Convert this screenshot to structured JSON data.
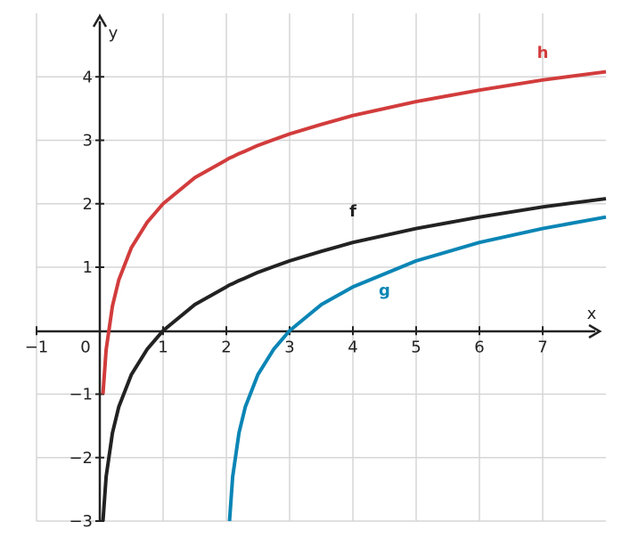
{
  "chart_data": {
    "type": "line",
    "x_label": "x",
    "y_label": "y",
    "xlim": [
      -1,
      8
    ],
    "ylim": [
      -3,
      5
    ],
    "xticks": [
      {
        "value": -1,
        "label": "−1"
      },
      0,
      1,
      2,
      3,
      4,
      5,
      6,
      7
    ],
    "yticks": [
      {
        "value": -3,
        "label": "−3"
      },
      {
        "value": -2,
        "label": "−2"
      },
      {
        "value": -1,
        "label": "−1"
      },
      1,
      2,
      3,
      4
    ],
    "grid": true,
    "x": [
      0.05,
      0.1,
      0.2,
      0.3,
      0.5,
      0.75,
      1,
      1.5,
      2,
      2.05,
      2.1,
      2.2,
      2.3,
      2.5,
      2.75,
      3,
      3.5,
      4,
      5,
      6,
      7,
      8
    ],
    "series": [
      {
        "name": "h",
        "color": "#d23c3c",
        "values": [
          -1.0,
          -0.3,
          0.39,
          0.8,
          1.31,
          1.71,
          2,
          2.41,
          2.69,
          2.72,
          2.74,
          2.79,
          2.83,
          2.92,
          3.01,
          3.1,
          3.25,
          3.39,
          3.61,
          3.79,
          3.95,
          4.08
        ]
      },
      {
        "name": "f",
        "color": "#222222",
        "values": [
          -3.0,
          -2.3,
          -1.61,
          -1.2,
          -0.69,
          -0.29,
          0,
          0.41,
          0.69,
          0.72,
          0.74,
          0.79,
          0.83,
          0.92,
          1.01,
          1.1,
          1.25,
          1.39,
          1.61,
          1.79,
          1.95,
          2.08
        ]
      },
      {
        "name": "g",
        "color": "#0a85b5",
        "values": [
          null,
          null,
          null,
          null,
          null,
          null,
          null,
          null,
          null,
          -3.0,
          -2.3,
          -1.61,
          -1.2,
          -0.69,
          -0.29,
          0,
          0.41,
          0.69,
          1.1,
          1.39,
          1.61,
          1.79
        ]
      }
    ]
  }
}
